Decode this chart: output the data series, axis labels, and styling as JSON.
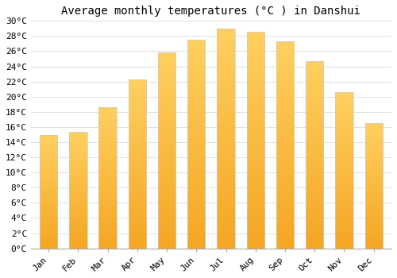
{
  "title": "Average monthly temperatures (°C ) in Danshui",
  "categories": [
    "Jan",
    "Feb",
    "Mar",
    "Apr",
    "May",
    "Jun",
    "Jul",
    "Aug",
    "Sep",
    "Oct",
    "Nov",
    "Dec"
  ],
  "values": [
    14.9,
    15.4,
    18.6,
    22.3,
    25.8,
    27.5,
    29.0,
    28.6,
    27.3,
    24.7,
    20.6,
    16.5
  ],
  "bar_color_bottom": "#F5A623",
  "bar_color_top": "#FFD060",
  "bar_edge_color": "#CCCCCC",
  "background_color": "#FFFFFF",
  "grid_color": "#E0E0E0",
  "ylim": [
    0,
    30
  ],
  "ytick_step": 2,
  "title_fontsize": 10,
  "tick_fontsize": 8,
  "bar_width": 0.6
}
